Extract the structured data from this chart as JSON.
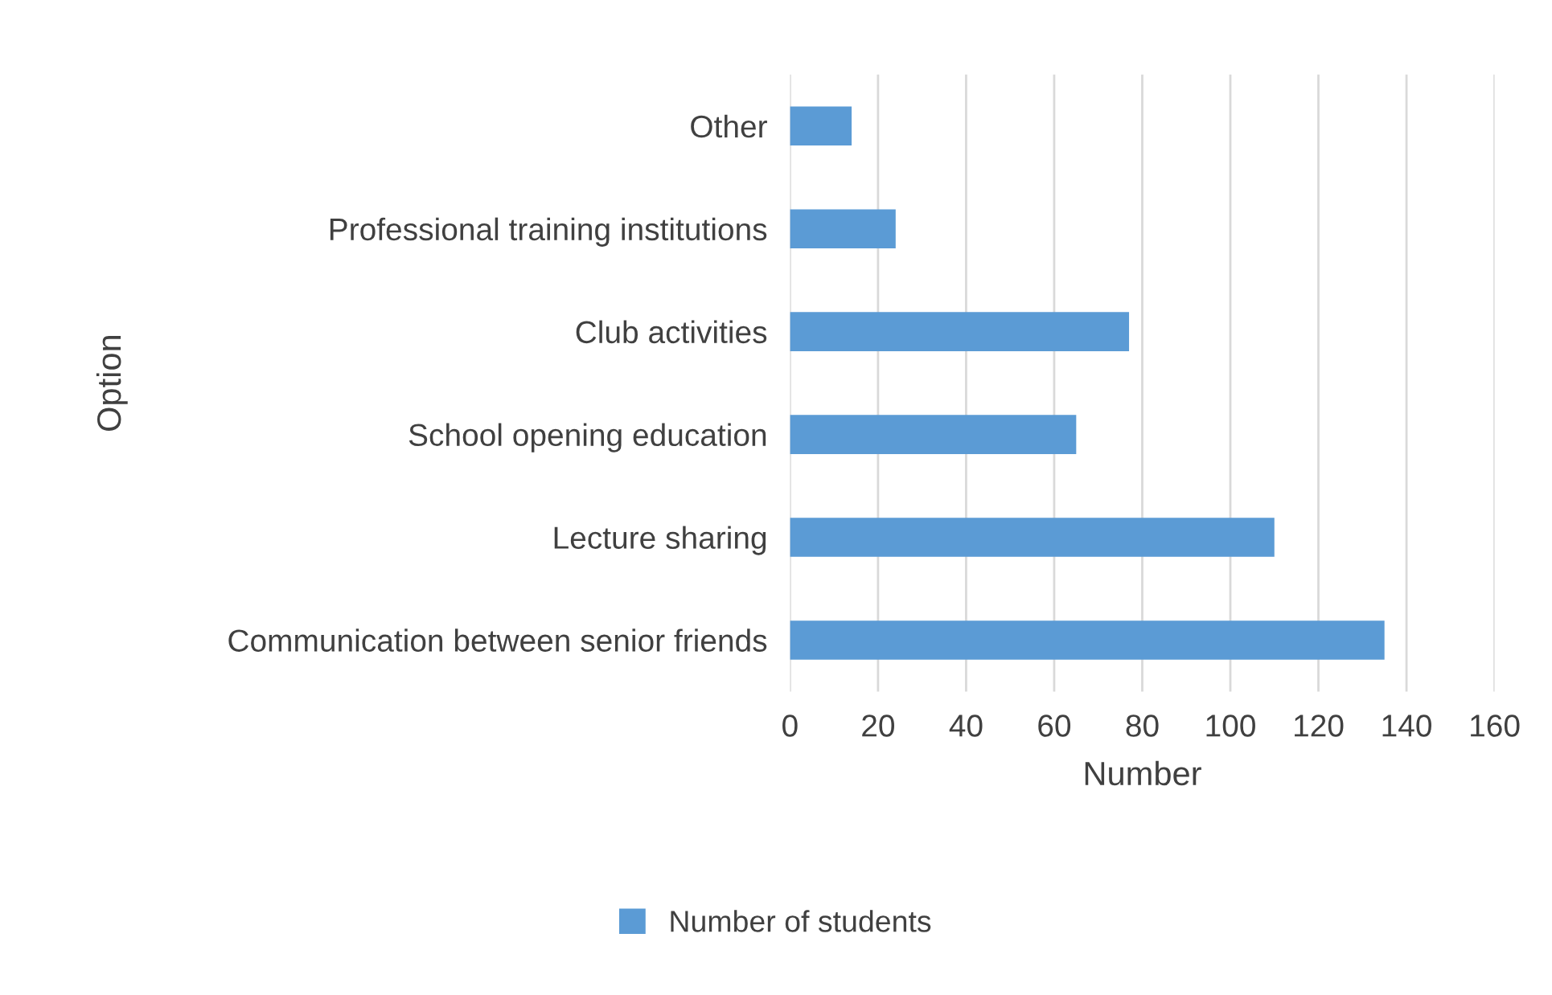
{
  "chart_data": {
    "type": "bar",
    "orientation": "horizontal",
    "xlabel": "Number",
    "ylabel": "Option",
    "categories": [
      "Other",
      "Professional training institutions",
      "Club activities",
      "School opening education",
      "Lecture sharing",
      "Communication between senior friends"
    ],
    "series": [
      {
        "name": "Number of students",
        "color": "#5b9bd5",
        "values": [
          14,
          24,
          77,
          65,
          110,
          135
        ]
      }
    ],
    "xlim": [
      0,
      160
    ],
    "xticks": [
      0,
      20,
      40,
      60,
      80,
      100,
      120,
      140,
      160
    ],
    "grid": "x",
    "legend": "bottom"
  }
}
